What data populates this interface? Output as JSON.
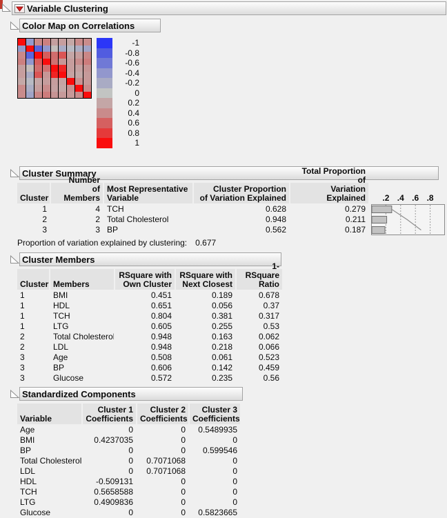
{
  "root": {
    "title": "Variable Clustering"
  },
  "icons": {
    "disclosure_open": "open-outline-triangle",
    "red_triangle_menu": "red-down-triangle"
  },
  "colors": {
    "page_bg": "#f0f0f0",
    "header_cell_bg": "#e3e3e3",
    "red_triangle": "#dd1f1f",
    "matrix_border": "#000000",
    "chart_bg": "#f4f4f4",
    "chart_border": "#8a8a8a",
    "bar_fill": "#c2c2c2",
    "bar_border": "#6e6e6e",
    "cumulative_line": "#8f8f8f"
  },
  "chart_data": [
    {
      "type": "heatmap",
      "title": "Color Map on Correlations",
      "variables": [
        "BMI",
        "HDL",
        "TCH",
        "LTG",
        "Total Cholesterol",
        "LDL",
        "Age",
        "BP",
        "Glucose"
      ],
      "matrix": [
        [
          1,
          -0.37,
          0.41,
          0.45,
          0.25,
          0.26,
          0.19,
          0.4,
          0.39
        ],
        [
          -0.37,
          1,
          -0.74,
          -0.4,
          0.05,
          -0.2,
          -0.08,
          -0.18,
          -0.27
        ],
        [
          0.41,
          -0.74,
          1,
          0.62,
          0.54,
          0.66,
          0.2,
          0.26,
          0.42
        ],
        [
          0.45,
          -0.4,
          0.62,
          1,
          0.52,
          0.32,
          0.27,
          0.39,
          0.47
        ],
        [
          0.25,
          0.05,
          0.54,
          0.52,
          1,
          0.9,
          0.26,
          0.24,
          0.33
        ],
        [
          0.26,
          -0.2,
          0.66,
          0.32,
          0.9,
          1,
          0.22,
          0.19,
          0.29
        ],
        [
          0.19,
          -0.08,
          0.2,
          0.27,
          0.26,
          0.22,
          1,
          0.34,
          0.3
        ],
        [
          0.4,
          -0.18,
          0.26,
          0.39,
          0.24,
          0.19,
          0.34,
          1,
          0.39
        ],
        [
          0.39,
          -0.27,
          0.42,
          0.47,
          0.33,
          0.29,
          0.3,
          0.39,
          1
        ]
      ],
      "colorscale": {
        "values": [
          -1,
          -0.8,
          -0.6,
          -0.4,
          -0.2,
          0,
          0.2,
          0.4,
          0.6,
          0.8,
          1
        ],
        "colors": [
          "#2B36F8",
          "#515CE0",
          "#7079D6",
          "#9297CD",
          "#A9ABC4",
          "#C2C4C2",
          "#C4A6A6",
          "#C98B8B",
          "#D56060",
          "#E53A3A",
          "#FA0D0D"
        ]
      },
      "legend_labels": [
        "-1",
        "-0.8",
        "-0.6",
        "-0.4",
        "-0.2",
        "0",
        "0.2",
        "0.4",
        "0.6",
        "0.8",
        "1"
      ]
    },
    {
      "type": "bar",
      "categories": [
        "1",
        "2",
        "3"
      ],
      "values": [
        0.279,
        0.211,
        0.187
      ],
      "cumulative": [
        0.279,
        0.49,
        0.677
      ],
      "xticks": [
        ".2",
        ".4",
        ".6",
        ".8"
      ],
      "xtick_values": [
        0.2,
        0.4,
        0.6,
        0.8
      ],
      "xlim": [
        0,
        1
      ],
      "grid": "dashed-vertical",
      "title": "Total Proportion of Variation Explained"
    }
  ],
  "color_map": {
    "title": "Color Map on Correlations"
  },
  "cluster_summary": {
    "title": "Cluster Summary",
    "columns": [
      [
        "",
        "Cluster"
      ],
      [
        "Number",
        "of Members"
      ],
      [
        "Most Representative",
        "Variable"
      ],
      [
        "Cluster Proportion",
        "of Variation Explained"
      ],
      [
        "Total Proportion of",
        "Variation Explained"
      ]
    ],
    "rows": [
      [
        "1",
        "4",
        "TCH",
        "0.628",
        "0.279"
      ],
      [
        "2",
        "2",
        "Total Cholesterol",
        "0.948",
        "0.211"
      ],
      [
        "3",
        "3",
        "BP",
        "0.562",
        "0.187"
      ]
    ],
    "footer_label": "Proportion of variation explained by clustering:",
    "footer_value": "0.677"
  },
  "cluster_members": {
    "title": "Cluster Members",
    "columns": [
      [
        "",
        "Cluster"
      ],
      [
        "",
        "Members"
      ],
      [
        "RSquare with",
        "Own Cluster"
      ],
      [
        "RSquare with",
        "Next Closest"
      ],
      [
        "1-RSquare",
        "Ratio"
      ]
    ],
    "rows": [
      [
        "1",
        "BMI",
        "0.451",
        "0.189",
        "0.678"
      ],
      [
        "1",
        "HDL",
        "0.651",
        "0.056",
        "0.37"
      ],
      [
        "1",
        "TCH",
        "0.804",
        "0.381",
        "0.317"
      ],
      [
        "1",
        "LTG",
        "0.605",
        "0.255",
        "0.53"
      ],
      [
        "2",
        "Total Cholesterol",
        "0.948",
        "0.163",
        "0.062"
      ],
      [
        "2",
        "LDL",
        "0.948",
        "0.218",
        "0.066"
      ],
      [
        "3",
        "Age",
        "0.508",
        "0.061",
        "0.523"
      ],
      [
        "3",
        "BP",
        "0.606",
        "0.142",
        "0.459"
      ],
      [
        "3",
        "Glucose",
        "0.572",
        "0.235",
        "0.56"
      ]
    ]
  },
  "standardized_components": {
    "title": "Standardized Components",
    "columns": [
      [
        "",
        "Variable"
      ],
      [
        "Cluster 1",
        "Coefficients"
      ],
      [
        "Cluster 2",
        "Coefficients"
      ],
      [
        "Cluster 3",
        "Coefficients"
      ]
    ],
    "rows": [
      [
        "Age",
        "0",
        "0",
        "0.5489935"
      ],
      [
        "BMI",
        "0.4237035",
        "0",
        "0"
      ],
      [
        "BP",
        "0",
        "0",
        "0.599546"
      ],
      [
        "Total Cholesterol",
        "0",
        "0.7071068",
        "0"
      ],
      [
        "LDL",
        "0",
        "0.7071068",
        "0"
      ],
      [
        "HDL",
        "-0.509131",
        "0",
        "0"
      ],
      [
        "TCH",
        "0.5658588",
        "0",
        "0"
      ],
      [
        "LTG",
        "0.4909836",
        "0",
        "0"
      ],
      [
        "Glucose",
        "0",
        "0",
        "0.5823665"
      ]
    ]
  }
}
